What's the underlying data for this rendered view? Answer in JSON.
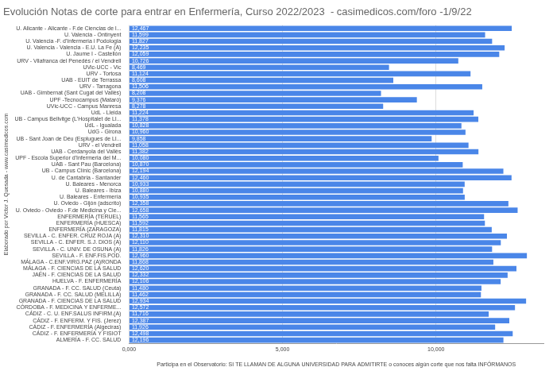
{
  "chart_data": {
    "type": "bar",
    "orientation": "horizontal",
    "title": "Evolución Notas de corte para entrar en Enfermería, Curso 2022/2023  - casimedicos.com/foro -1/9/22",
    "x_label": "Participa en el Observatorio: SI TE LLAMAN DE ALGUNA UNIVERSIDAD PARA ADMITIRTE o conoces algún corte que nos falta INFÓRMANOS",
    "y_label": "Elaborado por Víctor J. Quesada - www.casimedicos.com",
    "categories": [
      "U. Alicante - Alicante - F.de Ciencias de l...",
      "U. Valencia - Ontinyent",
      "U. Valencia -F. d'Infermeria i Podologia",
      "U. Valencia - Valencia - E.U. La Fe (A)",
      "U. Jaume I - Castellón",
      "URV - Vilafranca del Penedès / el Vendrell",
      "UVic-UCC - Vic",
      "URV - Tortosa",
      "UAB - EUIT de Terrassa",
      "URV - Tarragona",
      "UAB - Gimbernat (Sant Cugat del Vallès)",
      "UPF -Tecnocampus (Mataró)",
      "UVic-UCC - Campus Manresa",
      "UdL - Lleida",
      "UB - Campus Bellvitge (L'Hospitalet de Ll...",
      "UdL - Igualada",
      "UdG - Girona",
      "UB - Sant Joan de Déu (Esplugues de Ll...",
      "URV - el Vendrell",
      "UAB - Cerdanyola del Vallès",
      "UPF - Escola Superior d'Infermeria del M...",
      "UAB - Sant Pau (Barcelona)",
      "UB - Campus Clínic (Barcelona)",
      "U. de Cantabria - Santander",
      "U. Baleares - Menorca",
      "U. Baleares - Ibiza",
      "U. Baleares - Enfermería",
      "U. Oviedo - Gijón (adscrito)",
      "U. Oviedo - Oviedo - F.de Medicina y Cie...",
      "ENFERMERÍA (TERUEL)",
      "ENFERMERÍA (HUESCA)",
      "ENFERMERÍA (ZARAGOZA)",
      "SEVILLA - C. ENFER. CRUZ ROJA (A)",
      "SEVILLA - C. ENFER. S.J. DIOS (A)",
      "SEVILLA - C. UNIV. DE OSUNA (A)",
      "SEVILLA - F. ENF.FIS.POD.",
      "MÁLAGA - C.ENF.VIRG.PAZ (A)RONDA",
      "MÁLAGA - F. CIENCIAS DE LA SALUD",
      "JAÉN - F. CIENCIAS DE LA SALUD",
      "HUELVA - F. ENFERMERÍA",
      "GRANADA - F. CC. SALUD (Ceuta)",
      "GRANADA - F. CC. SALUD (MELILLA)",
      "GRANADA - F. CIENCIAS DE LA SALUD",
      "CÓRDOBA - F. MEDICINA Y ENFERME...",
      "CÁDIZ - C. U. ENF.SALUS INFIRM.(A)",
      "CÁDIZ - F. ENFERM. Y FIS. (Jerez)",
      "CÁDIZ - F. ENFERMERÍA (Algeciras)",
      "CÁDIZ - F. ENFERMERÍA Y FISIOT",
      "ALMERÍA - F. CC. SALUD"
    ],
    "values": [
      12467,
      11599,
      11827,
      12235,
      12059,
      10726,
      8469,
      11124,
      8608,
      11506,
      8208,
      9376,
      8278,
      11224,
      11378,
      10828,
      10960,
      9858,
      11058,
      11382,
      10080,
      10870,
      12194,
      12460,
      10933,
      10880,
      10935,
      12358,
      12658,
      11565,
      11592,
      11815,
      12310,
      12110,
      11826,
      12960,
      11868,
      12620,
      12332,
      12106,
      11480,
      11462,
      12934,
      12572,
      11716,
      12387,
      11926,
      12498,
      12196
    ],
    "value_labels": [
      "12,467",
      "11,599",
      "11,827",
      "12,235",
      "12,059",
      "10,726",
      "8,469",
      "11,124",
      "8,608",
      "11,506",
      "8,208",
      "9,376",
      "8,278",
      "11,224",
      "11,378",
      "10,828",
      "10,960",
      "9,858",
      "11,058",
      "11,382",
      "10,080",
      "10,870",
      "12,194",
      "12,460",
      "10,933",
      "10,880",
      "10,935",
      "12,358",
      "12,658",
      "11,565",
      "11,592",
      "11,815",
      "12,310",
      "12,110",
      "11,826",
      "12,960",
      "11,868",
      "12,620",
      "12,332",
      "12,106",
      "11,480",
      "11,462",
      "12,934",
      "12,572",
      "11,716",
      "12,387",
      "11,926",
      "12,498",
      "12,196"
    ],
    "color": "#4a86e8",
    "xlim": [
      0,
      13500
    ],
    "xticks": [
      {
        "value": 0,
        "label": "0,000"
      },
      {
        "value": 5000,
        "label": "5,000"
      },
      {
        "value": 10000,
        "label": "10,000"
      }
    ],
    "grid": true,
    "data_labels": true
  }
}
